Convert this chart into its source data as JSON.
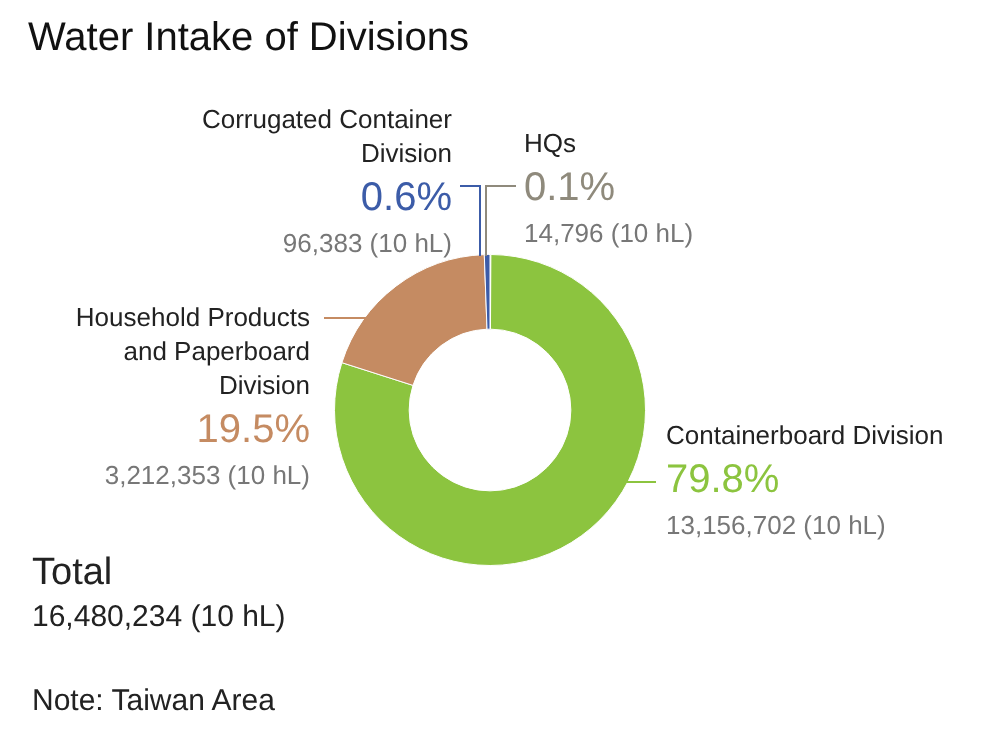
{
  "chart_data": {
    "type": "donut",
    "title": "Water Intake of Divisions",
    "categories": [
      "HQs",
      "Containerboard Division",
      "Household Products and Paperboard Division",
      "Corrugated Container Division"
    ],
    "values": [
      14796,
      13156702,
      3212353,
      96383
    ],
    "colors": [
      "#8f8a7c",
      "#8cc43f",
      "#c58b62",
      "#3c5ca8"
    ],
    "value_labels": [
      "0.1%\n14,796 (10 hL)",
      "79.8%\n13,156,702 (10 hL)",
      "19.5%\n3,212,353 (10 hL)",
      "0.6%\n96,383 (10 hL)"
    ],
    "annotations": [
      "Total",
      "16,480,234 (10 hL)",
      "Note: Taiwan Area"
    ],
    "legend": false
  }
}
